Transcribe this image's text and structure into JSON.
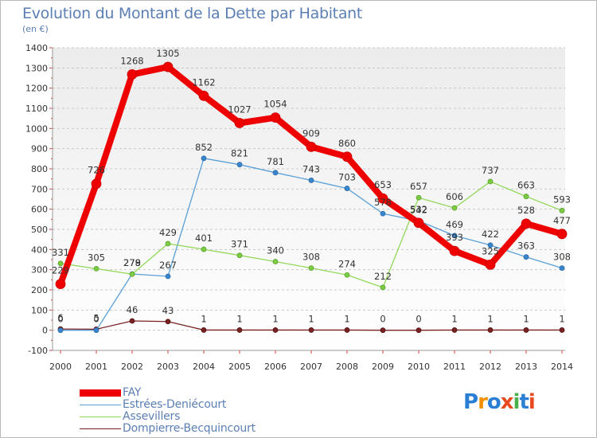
{
  "title": "Evolution du Montant de la Dette par Habitant",
  "subtitle": "(en €)",
  "logo": {
    "text": "Proxiti",
    "colors": [
      "#2a7fd4",
      "#f29100",
      "#2a7fd4",
      "#e84a20",
      "#47b04a",
      "#2a7fd4",
      "#e84a20"
    ]
  },
  "chart_data": {
    "type": "line",
    "title": "Evolution du Montant de la Dette par Habitant",
    "subtitle": "(en €)",
    "xlabel": "",
    "ylabel": "",
    "x": [
      "2000",
      "2001",
      "2002",
      "2003",
      "2004",
      "2005",
      "2006",
      "2007",
      "2008",
      "2009",
      "2010",
      "2011",
      "2012",
      "2013",
      "2014"
    ],
    "ylim": [
      -100,
      1400
    ],
    "yticks": [
      "-100",
      "0",
      "100",
      "200",
      "300",
      "400",
      "500",
      "600",
      "700",
      "800",
      "900",
      "1000",
      "1100",
      "1200",
      "1300",
      "1400"
    ],
    "grid": "horizontal dashed",
    "legend_position": "bottom-left",
    "series": [
      {
        "name": "FAY",
        "color": "#ee0000",
        "values": [
          229,
          726,
          1268,
          1305,
          1162,
          1027,
          1054,
          909,
          860,
          653,
          532,
          393,
          325,
          528,
          477
        ],
        "labels": [
          "229",
          "726",
          "1268",
          "1305",
          "1162",
          "1027",
          "1054",
          "909",
          "860",
          "653",
          "532",
          "393",
          "325",
          "528",
          "477"
        ]
      },
      {
        "name": "Estrées-Deniécourt",
        "color": "#5aa0d8",
        "values": [
          0,
          0,
          279,
          267,
          852,
          821,
          781,
          743,
          703,
          578,
          542,
          469,
          422,
          363,
          308
        ],
        "labels": [
          "0",
          "0",
          "279",
          "267",
          "852",
          "821",
          "781",
          "743",
          "703",
          "578",
          "542",
          "469",
          "422",
          "363",
          "308"
        ]
      },
      {
        "name": "Assevillers",
        "color": "#93d85a",
        "values": [
          331,
          305,
          278,
          429,
          401,
          371,
          340,
          308,
          274,
          212,
          657,
          606,
          737,
          663,
          593
        ],
        "labels": [
          "331",
          "305",
          "278",
          "429",
          "401",
          "371",
          "340",
          "308",
          "274",
          "212",
          "657",
          "606",
          "737",
          "663",
          "593"
        ]
      },
      {
        "name": "Dompierre-Becquincourt",
        "color": "#7a2222",
        "values": [
          6,
          5,
          46,
          43,
          1,
          1,
          1,
          1,
          1,
          0,
          0,
          1,
          1,
          1,
          1
        ],
        "labels": [
          "6",
          "5",
          "46",
          "43",
          "1",
          "1",
          "1",
          "1",
          "1",
          "0",
          "0",
          "1",
          "1",
          "1",
          "1"
        ]
      }
    ]
  }
}
